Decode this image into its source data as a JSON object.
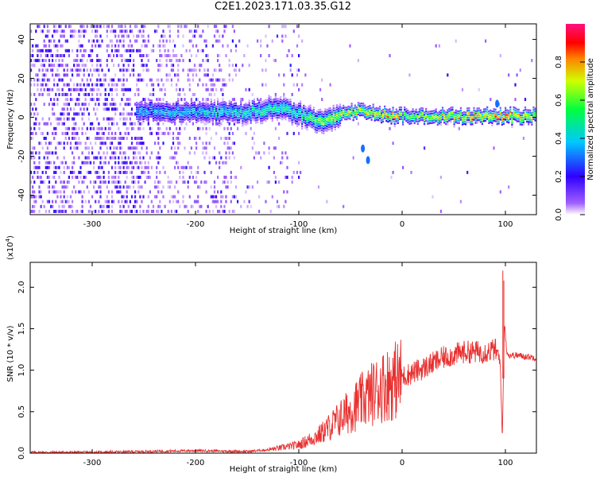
{
  "figure_title": "C2E1.2023.171.03.35.G12",
  "chart_data": [
    {
      "type": "heatmap",
      "xlabel": "Height of straight line (km)",
      "ylabel": "Frequency (Hz)",
      "xlim": [
        -360,
        130
      ],
      "ylim": [
        -50,
        48
      ],
      "x_ticks": [
        -300,
        -200,
        -100,
        0,
        100
      ],
      "x_tick_labels": [
        "-300",
        "-200",
        "-100",
        "0",
        "100"
      ],
      "y_ticks": [
        -40,
        -20,
        0,
        20,
        40
      ],
      "y_tick_labels": [
        "-40",
        "-20",
        "0",
        "20",
        "40"
      ],
      "ridge": {
        "x": [
          -258,
          -200,
          -150,
          -120,
          -100,
          -80,
          -60,
          -40,
          -20,
          -10,
          0,
          50,
          100,
          130
        ],
        "frequency": [
          4,
          3,
          3,
          6,
          2,
          -2,
          2,
          4,
          2,
          1,
          1,
          1,
          1,
          1
        ],
        "amplitude": [
          0.35,
          0.4,
          0.45,
          0.5,
          0.45,
          0.6,
          0.65,
          0.7,
          0.75,
          0.9,
          0.6,
          0.75,
          0.85,
          0.7
        ]
      },
      "notes": "Broadband noise below about -100 km, concentrated spectral energy along near-zero frequency above -100 km"
    },
    {
      "type": "line",
      "xlabel": "Height of straight line (km)",
      "ylabel": "SNR (10 * v/v)",
      "y_multiplier_label": "(x10",
      "y_multiplier_exp": "4",
      "y_multiplier_close": ")",
      "xlim": [
        -360,
        130
      ],
      "ylim": [
        0,
        2.3
      ],
      "x_ticks": [
        -300,
        -200,
        -100,
        0,
        100
      ],
      "x_tick_labels": [
        "-300",
        "-200",
        "-100",
        "0",
        "100"
      ],
      "y_ticks": [
        0.0,
        0.5,
        1.0,
        1.5,
        2.0
      ],
      "y_tick_labels": [
        "0.0",
        "0.5",
        "1.0",
        "1.5",
        "2.0"
      ],
      "color": "#e8302f",
      "series": [
        {
          "name": "SNR",
          "x": [
            -360,
            -300,
            -250,
            -200,
            -150,
            -130,
            -120,
            -100,
            -80,
            -60,
            -40,
            -20,
            0,
            20,
            40,
            60,
            80,
            90,
            95,
            97,
            99,
            101,
            103,
            110,
            130
          ],
          "values": [
            0.01,
            0.01,
            0.02,
            0.03,
            0.02,
            0.04,
            0.06,
            0.1,
            0.22,
            0.42,
            0.62,
            0.8,
            0.92,
            1.02,
            1.15,
            1.22,
            1.22,
            1.25,
            1.1,
            0.15,
            1.6,
            1.25,
            1.18,
            1.18,
            1.15
          ]
        }
      ],
      "spikes": [
        {
          "x": 97.5,
          "value": 2.2
        },
        {
          "x": 98.5,
          "value": 2.08
        }
      ]
    },
    {
      "type": "colorbar",
      "label": "Normalized spectral amplitude",
      "range": [
        0.0,
        1.0
      ],
      "ticks": [
        0.0,
        0.2,
        0.4,
        0.6,
        0.8
      ],
      "tick_labels": [
        "0.0",
        "0.2",
        "0.4",
        "0.6",
        "0.8"
      ],
      "colors": [
        "#ffffff",
        "#7a00ff",
        "#0000ff",
        "#00ffff",
        "#00ff00",
        "#ffff00",
        "#ff0000",
        "#ff0080"
      ]
    }
  ]
}
